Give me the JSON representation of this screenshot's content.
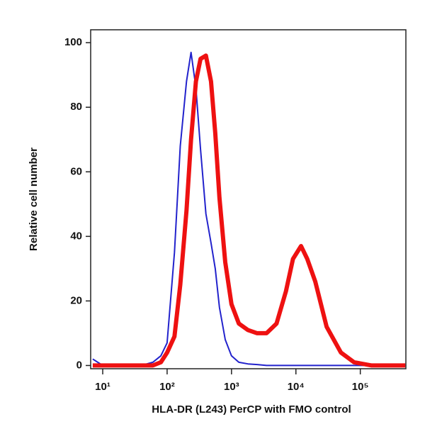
{
  "chart_data": {
    "type": "line",
    "xlabel": "HLA-DR (L243) PerCP with FMO control",
    "ylabel": "Relative cell number",
    "xscale": "log",
    "x": [
      7,
      10,
      20,
      40,
      60,
      80,
      100,
      130,
      160,
      200,
      235,
      280,
      330,
      400,
      480,
      560,
      650,
      800,
      1000,
      1300,
      1800,
      2500,
      3500,
      5000,
      7000,
      9000,
      12000,
      15000,
      20000,
      30000,
      50000,
      80000,
      150000,
      500000
    ],
    "series": [
      {
        "color": "#2222cc",
        "width": 2,
        "values": [
          2,
          0,
          0,
          0,
          1,
          3,
          7,
          35,
          68,
          88,
          97,
          86,
          67,
          47,
          38,
          30,
          18,
          8,
          3,
          1,
          0.5,
          0.3,
          0,
          0,
          0,
          0,
          0,
          0,
          0,
          0,
          0,
          0,
          0,
          0
        ]
      },
      {
        "color": "#ee1111",
        "width": 6,
        "values": [
          0,
          0,
          0,
          0,
          0,
          1,
          4,
          9,
          25,
          48,
          70,
          88,
          95,
          96,
          88,
          72,
          52,
          32,
          19,
          13,
          11,
          10,
          10,
          13,
          23,
          33,
          37,
          33,
          26,
          12,
          4,
          1,
          0,
          0
        ]
      }
    ],
    "xlim": [
      6.5,
      510000
    ],
    "ylim": [
      -1,
      104
    ],
    "xticks": [
      {
        "value": 10,
        "label": "10¹"
      },
      {
        "value": 100,
        "label": "10²"
      },
      {
        "value": 1000,
        "label": "10³"
      },
      {
        "value": 10000,
        "label": "10⁴"
      },
      {
        "value": 100000,
        "label": "10⁵"
      }
    ],
    "yticks": [
      0,
      20,
      40,
      60,
      80,
      100
    ]
  }
}
